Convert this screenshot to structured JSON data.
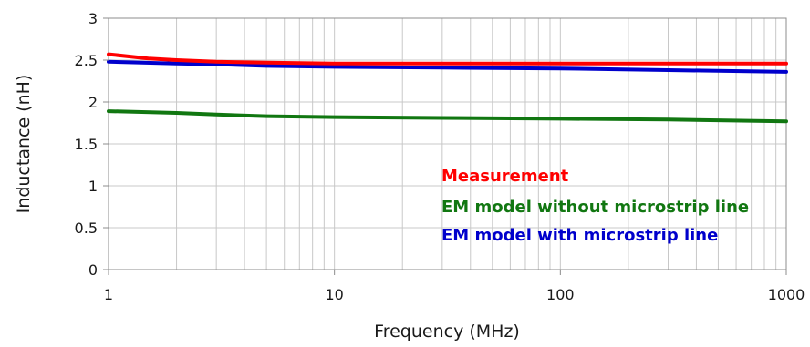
{
  "chart_data": {
    "type": "line",
    "xlabel": "Frequency (MHz)",
    "ylabel": "Inductance (nH)",
    "xscale": "log",
    "xlim": [
      1,
      1000
    ],
    "ylim": [
      0,
      3
    ],
    "xticks": [
      "1",
      "10",
      "100",
      "1000"
    ],
    "yticks": [
      "0",
      "0.5",
      "1",
      "1.5",
      "2",
      "2.5",
      "3"
    ],
    "grid": true,
    "legend_position": "center-right",
    "series": [
      {
        "name": "Measurement",
        "color": "#ff0000",
        "x": [
          1,
          1.5,
          2,
          3,
          5,
          10,
          30,
          100,
          300,
          1000
        ],
        "y": [
          2.57,
          2.52,
          2.5,
          2.48,
          2.47,
          2.46,
          2.46,
          2.46,
          2.46,
          2.46
        ]
      },
      {
        "name": "EM model without microstrip line",
        "color": "#117711",
        "x": [
          1,
          2,
          3,
          5,
          10,
          30,
          100,
          300,
          1000
        ],
        "y": [
          1.89,
          1.87,
          1.85,
          1.83,
          1.82,
          1.81,
          1.8,
          1.79,
          1.77
        ]
      },
      {
        "name": "EM model with microstrip line",
        "color": "#0000cc",
        "x": [
          1,
          2,
          3,
          5,
          10,
          30,
          100,
          300,
          1000
        ],
        "y": [
          2.48,
          2.46,
          2.45,
          2.43,
          2.42,
          2.41,
          2.4,
          2.38,
          2.36
        ]
      }
    ]
  }
}
